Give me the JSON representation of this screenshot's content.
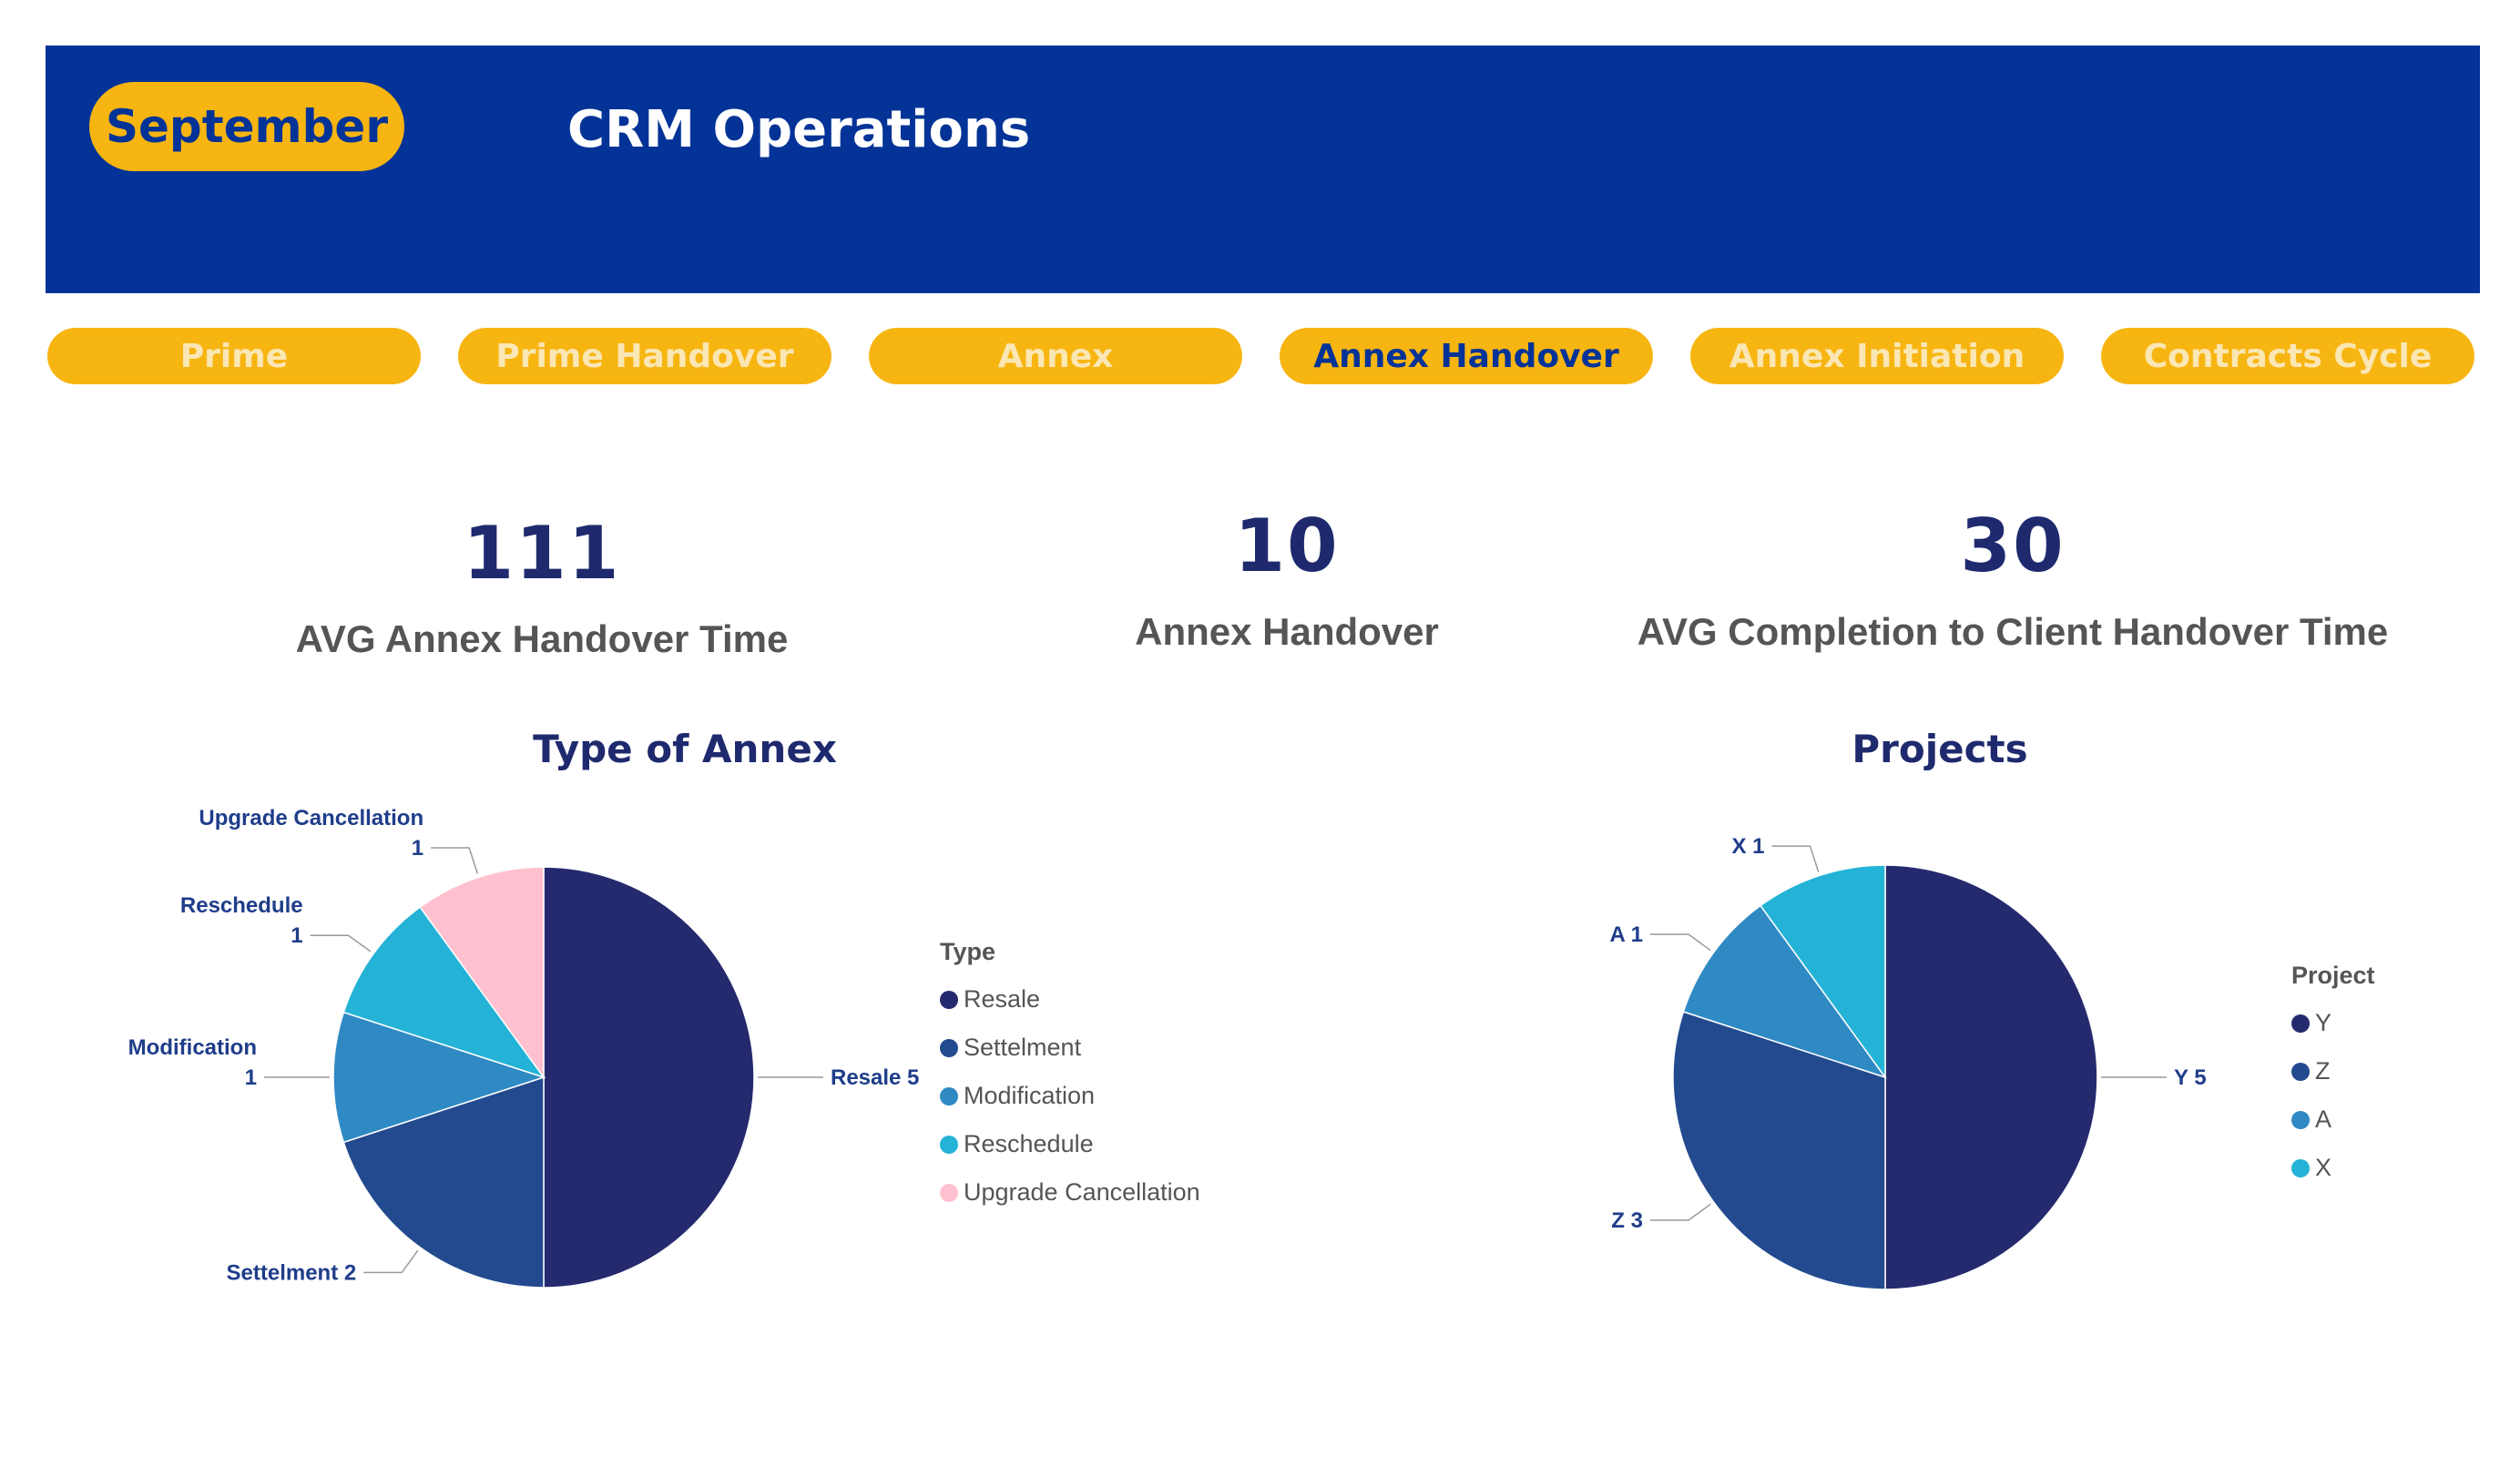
{
  "header": {
    "month": "September",
    "title": "CRM Operations"
  },
  "tabs": [
    {
      "label": "Prime",
      "active": false
    },
    {
      "label": "Prime Handover",
      "active": false
    },
    {
      "label": "Annex",
      "active": false
    },
    {
      "label": "Annex Handover",
      "active": true
    },
    {
      "label": "Annex Initiation",
      "active": false
    },
    {
      "label": "Contracts Cycle",
      "active": false
    }
  ],
  "kpis": [
    {
      "value": "111",
      "label": "AVG Annex Handover Time"
    },
    {
      "value": "10",
      "label": "Annex Handover"
    },
    {
      "value": "30",
      "label": "AVG Completion to Client Handover Time"
    }
  ],
  "colors": {
    "banner": "#033397",
    "accent": "#f7b512",
    "series": [
      "#252a6e",
      "#234a8f",
      "#2f8ac4",
      "#24b3d6",
      "#ffc1cf"
    ]
  },
  "chart_data": [
    {
      "type": "pie",
      "title": "Type of Annex",
      "legend_title": "Type",
      "legend_position": "right",
      "slices": [
        {
          "name": "Resale",
          "value": 5,
          "label_lines": [
            "Resale 5"
          ],
          "color": "#252a6e"
        },
        {
          "name": "Settelment",
          "value": 2,
          "label_lines": [
            "Settelment 2"
          ],
          "color": "#234a8f"
        },
        {
          "name": "Modification",
          "value": 1,
          "label_lines": [
            "Modification",
            "1"
          ],
          "color": "#2f8ac4"
        },
        {
          "name": "Reschedule",
          "value": 1,
          "label_lines": [
            "Reschedule",
            "1"
          ],
          "color": "#24b3d6"
        },
        {
          "name": "Upgrade Cancellation",
          "value": 1,
          "label_lines": [
            "Upgrade Cancellation",
            "1"
          ],
          "color": "#ffc1cf"
        }
      ]
    },
    {
      "type": "pie",
      "title": "Projects",
      "legend_title": "Project",
      "legend_position": "right",
      "slices": [
        {
          "name": "Y",
          "value": 5,
          "label_lines": [
            "Y 5"
          ],
          "color": "#252a6e"
        },
        {
          "name": "Z",
          "value": 3,
          "label_lines": [
            "Z 3"
          ],
          "color": "#234a8f"
        },
        {
          "name": "A",
          "value": 1,
          "label_lines": [
            "A 1"
          ],
          "color": "#2f8ac4"
        },
        {
          "name": "X",
          "value": 1,
          "label_lines": [
            "X 1"
          ],
          "color": "#24b3d6"
        }
      ]
    }
  ]
}
